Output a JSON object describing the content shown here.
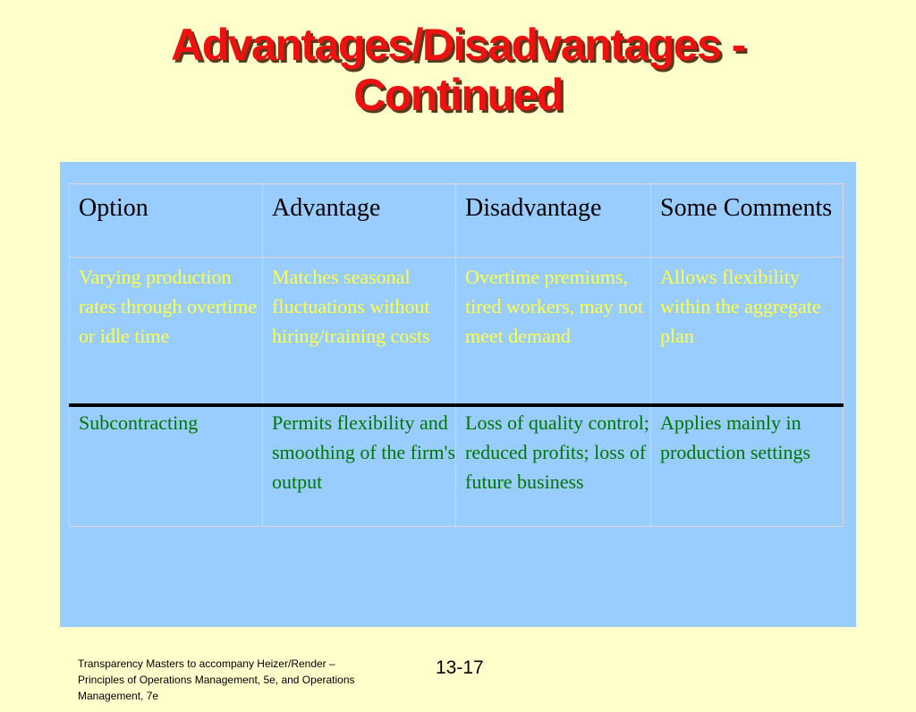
{
  "slide": {
    "title_line1": "Advantages/Disadvantages -",
    "title_line2": "Continued"
  },
  "table": {
    "headers": [
      "Option",
      "Advantage",
      "Disadvantage",
      "Some Comments"
    ],
    "rows": [
      [
        "Varying production rates through overtime or idle time",
        "Matches seasonal fluctuations without hiring/training costs",
        "Overtime premiums, tired workers, may not meet demand",
        "Allows flexibility within the aggregate plan"
      ],
      [
        "Subcontracting",
        "Permits flexibility and smoothing of the firm's output",
        "Loss of quality control; reduced profits; loss of future business",
        "Applies mainly in production settings"
      ]
    ],
    "colors": {
      "panel_background": "#99CCFF",
      "row1_text": "#FFFF44",
      "row2_text": "#007700",
      "header_text": "#000000"
    }
  },
  "footer": {
    "note": "Transparency Masters to accompany Heizer/Render – Principles of Operations Management, 5e, and Operations Management, 7e",
    "page_number": "13-17"
  },
  "colors": {
    "background": "#FFFFCC",
    "title": "#EE1111"
  }
}
